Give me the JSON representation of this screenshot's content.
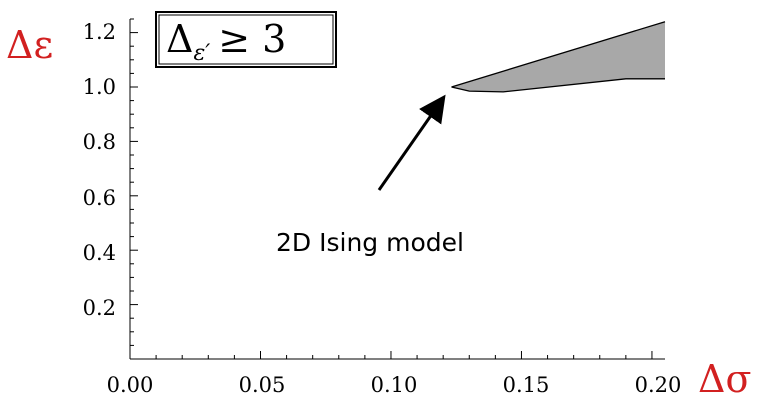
{
  "chart_data": {
    "type": "area",
    "xlabel": "Δσ",
    "ylabel": "Δε",
    "xlim": [
      0.0,
      0.205
    ],
    "ylim": [
      0.0,
      1.25
    ],
    "x_ticks": [
      "0.00",
      "0.05",
      "0.10",
      "0.15",
      "0.20"
    ],
    "y_ticks": [
      "0.2",
      "0.4",
      "0.6",
      "0.8",
      "1.0",
      "1.2"
    ],
    "x_tick_values": [
      0.0,
      0.05,
      0.1,
      0.15,
      0.2
    ],
    "y_tick_values": [
      0.2,
      0.4,
      0.6,
      0.8,
      1.0,
      1.2
    ],
    "x_minor_step": 0.01,
    "y_minor_step": 0.05,
    "grid": false,
    "fill_color": "#a8a8a8",
    "region": {
      "upper": [
        [
          0.1232,
          1.0
        ],
        [
          0.205,
          1.24
        ]
      ],
      "lower": [
        [
          0.1232,
          1.0
        ],
        [
          0.13,
          0.985
        ],
        [
          0.143,
          0.982
        ],
        [
          0.19,
          1.03
        ],
        [
          0.205,
          1.03
        ]
      ]
    },
    "legend_box": {
      "lhs": "Δ",
      "sub": "ε′",
      "rhs": "≥ 3"
    },
    "annotation": {
      "text": "2D Ising model",
      "point": [
        0.1232,
        1.0
      ]
    }
  }
}
